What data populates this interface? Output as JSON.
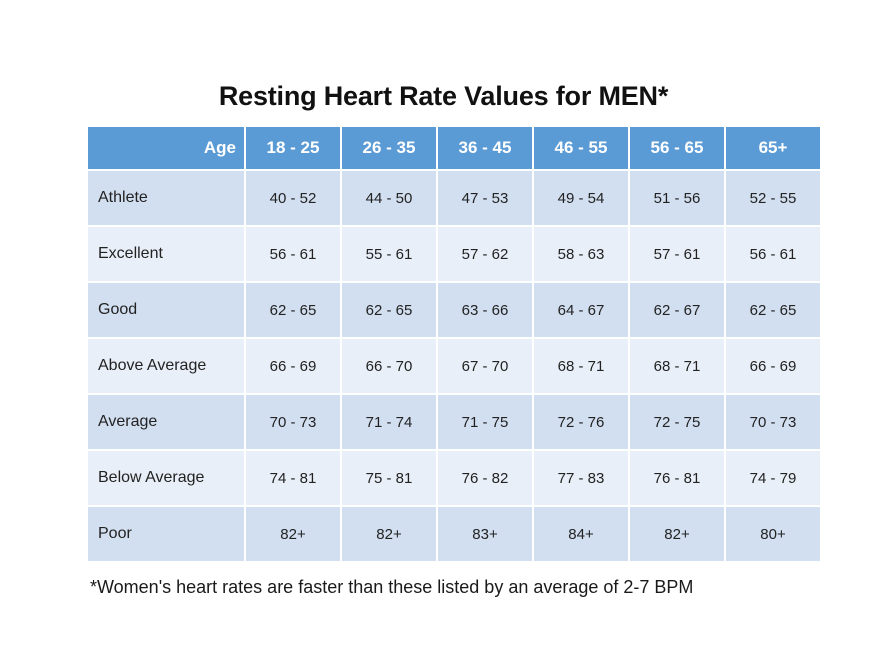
{
  "title": "Resting Heart Rate Values for MEN*",
  "table": {
    "header": [
      "Age",
      "18 - 25",
      "26 - 35",
      "36 - 45",
      "46 - 55",
      "56 - 65",
      "65+"
    ],
    "rows": [
      {
        "category": "Athlete",
        "values": [
          "40 - 52",
          "44 - 50",
          "47 - 53",
          "49 - 54",
          "51 - 56",
          "52 - 55"
        ]
      },
      {
        "category": "Excellent",
        "values": [
          "56 - 61",
          "55 - 61",
          "57 - 62",
          "58 - 63",
          "57 - 61",
          "56 - 61"
        ]
      },
      {
        "category": "Good",
        "values": [
          "62 - 65",
          "62 - 65",
          "63 - 66",
          "64 - 67",
          "62 - 67",
          "62 - 65"
        ]
      },
      {
        "category": "Above Average",
        "values": [
          "66 - 69",
          "66 - 70",
          "67 - 70",
          "68 - 71",
          "68 - 71",
          "66 - 69"
        ]
      },
      {
        "category": "Average",
        "values": [
          "70 - 73",
          "71 - 74",
          "71 - 75",
          "72 - 76",
          "72 - 75",
          "70 - 73"
        ]
      },
      {
        "category": "Below Average",
        "values": [
          "74 - 81",
          "75 - 81",
          "76 - 82",
          "77 - 83",
          "76 - 81",
          "74 - 79"
        ]
      },
      {
        "category": "Poor",
        "values": [
          "82+",
          "82+",
          "83+",
          "84+",
          "82+",
          "80+"
        ]
      }
    ]
  },
  "footnote": "*Women's heart rates are faster than these listed by an average of 2-7 BPM",
  "colors": {
    "header_bg": "#5b9bd5",
    "row_dark": "#d2dff0",
    "row_light": "#e9eff8"
  }
}
